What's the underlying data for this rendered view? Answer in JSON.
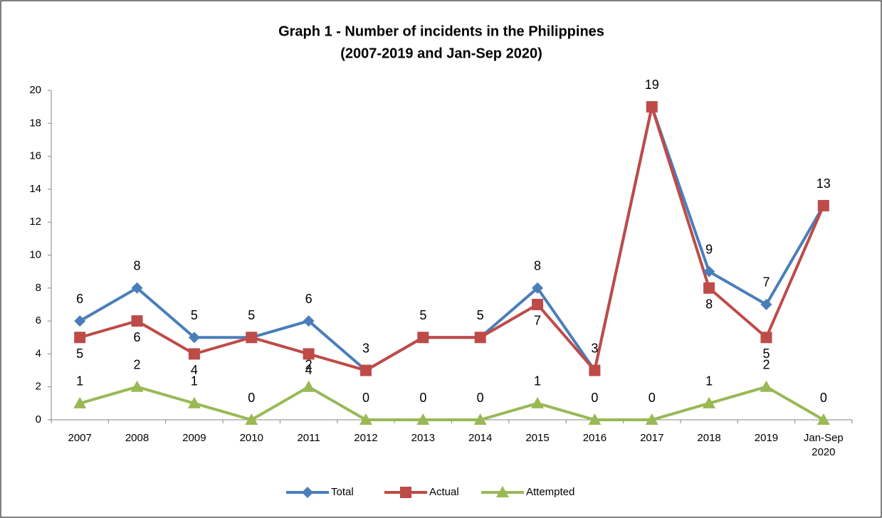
{
  "chart_data": {
    "type": "line",
    "title": "Graph 1 - Number of incidents in the Philippines",
    "subtitle": "(2007-2019 and Jan-Sep 2020)",
    "categories": [
      "2007",
      "2008",
      "2009",
      "2010",
      "2011",
      "2012",
      "2013",
      "2014",
      "2015",
      "2016",
      "2017",
      "2018",
      "2019",
      "Jan-Sep 2020"
    ],
    "series": [
      {
        "name": "Total",
        "color": "#4a7ebb",
        "marker": "diamond",
        "values": [
          6,
          8,
          5,
          5,
          6,
          3,
          5,
          5,
          8,
          3,
          19,
          9,
          7,
          13
        ]
      },
      {
        "name": "Actual",
        "color": "#be4b48",
        "marker": "square",
        "values": [
          5,
          6,
          4,
          5,
          4,
          3,
          5,
          5,
          7,
          3,
          19,
          8,
          5,
          13
        ]
      },
      {
        "name": "Attempted",
        "color": "#98b954",
        "marker": "triangle",
        "values": [
          1,
          2,
          1,
          0,
          2,
          0,
          0,
          0,
          1,
          0,
          0,
          1,
          2,
          0
        ]
      }
    ],
    "ylim": [
      0,
      20
    ],
    "yticks": [
      0,
      2,
      4,
      6,
      8,
      10,
      12,
      14,
      16,
      18,
      20
    ],
    "grid": false,
    "legend": "bottom"
  }
}
